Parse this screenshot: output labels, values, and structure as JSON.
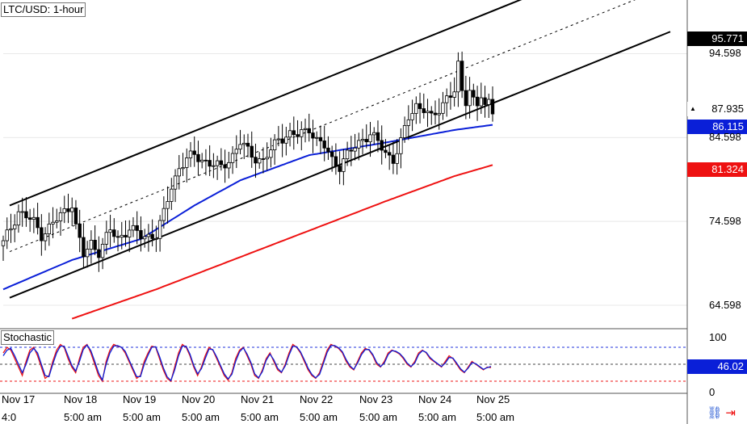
{
  "chart_data": [
    {
      "type": "candlestick",
      "title": "LTC/USD: 1-hour",
      "ylim": [
        62,
        101
      ],
      "y_ticks": [
        94.598,
        84.598,
        74.598,
        64.598
      ],
      "y_tick_labels": [
        "94.598",
        "84.598",
        "74.598",
        "64.598"
      ],
      "x_ticks_top": [
        "Nov 17",
        "Nov 18",
        "Nov 19",
        "Nov 20",
        "Nov 21",
        "Nov 22",
        "Nov 23",
        "Nov 24",
        "Nov 25"
      ],
      "x_ticks_bottom": [
        "4:0",
        "5:00 am",
        "5:00 am",
        "5:00 am",
        "5:00 am",
        "5:00 am",
        "5:00 am",
        "5:00 am",
        "5:00 am"
      ],
      "price_tags": [
        {
          "value": "95.771",
          "bg": "#000000",
          "fg": "#ffffff"
        },
        {
          "value": "87.935",
          "bg": "#ffffff",
          "fg": "#000000"
        },
        {
          "value": "86.115",
          "bg": "#0a1fd8",
          "fg": "#ffffff"
        },
        {
          "value": "81.324",
          "bg": "#ee1111",
          "fg": "#ffffff"
        }
      ],
      "close_path": [
        [
          0,
          72.0
        ],
        [
          4,
          75.8
        ],
        [
          8,
          74.5
        ],
        [
          10,
          73.0
        ],
        [
          14,
          74.8
        ],
        [
          18,
          76.8
        ],
        [
          19,
          74.0
        ],
        [
          21,
          70.5
        ],
        [
          23,
          72.0
        ],
        [
          25,
          71.0
        ],
        [
          28,
          73.5
        ],
        [
          30,
          72.5
        ],
        [
          33,
          73.8
        ],
        [
          36,
          72.8
        ],
        [
          40,
          73.0
        ],
        [
          42,
          75.5
        ],
        [
          44,
          78.8
        ],
        [
          46,
          81.0
        ],
        [
          48,
          82.0
        ],
        [
          50,
          82.5
        ],
        [
          54,
          81.5
        ],
        [
          57,
          81.0
        ],
        [
          60,
          82.5
        ],
        [
          62,
          84.0
        ],
        [
          64,
          83.0
        ],
        [
          66,
          82.2
        ],
        [
          68,
          81.8
        ],
        [
          70,
          83.0
        ],
        [
          72,
          84.5
        ],
        [
          75,
          85.0
        ],
        [
          77,
          84.8
        ],
        [
          80,
          85.8
        ],
        [
          82,
          84.2
        ],
        [
          84,
          83.5
        ],
        [
          86,
          82.0
        ],
        [
          88,
          81.2
        ],
        [
          90,
          82.5
        ],
        [
          92,
          83.5
        ],
        [
          94,
          84.5
        ],
        [
          96,
          85.0
        ],
        [
          98,
          84.0
        ],
        [
          100,
          82.8
        ],
        [
          102,
          82.0
        ],
        [
          104,
          84.0
        ],
        [
          106,
          87.0
        ],
        [
          108,
          88.5
        ],
        [
          110,
          88.0
        ],
        [
          112,
          86.8
        ],
        [
          114,
          88.0
        ],
        [
          116,
          89.5
        ],
        [
          118,
          90.0
        ],
        [
          119,
          93.0
        ],
        [
          120,
          90.0
        ],
        [
          121,
          89.0
        ],
        [
          122,
          90.5
        ],
        [
          123,
          89.2
        ],
        [
          124,
          88.5
        ],
        [
          125,
          89.5
        ],
        [
          126,
          88.0
        ],
        [
          127,
          88.7
        ],
        [
          128,
          87.9
        ]
      ],
      "series": [
        {
          "name": "",
          "color": "#0a1fd8",
          "points": [
            [
              0,
              66.5
            ],
            [
              18,
              70.0
            ],
            [
              36,
              72.5
            ],
            [
              50,
              76.5
            ],
            [
              62,
              79.5
            ],
            [
              80,
              82.5
            ],
            [
              100,
              84.0
            ],
            [
              118,
              85.5
            ],
            [
              128,
              86.115
            ]
          ]
        },
        {
          "name": "",
          "color": "#ee1111",
          "points": [
            [
              18,
              63.0
            ],
            [
              40,
              66.5
            ],
            [
              60,
              70.0
            ],
            [
              80,
              73.5
            ],
            [
              100,
              77.0
            ],
            [
              118,
              80.0
            ],
            [
              128,
              81.324
            ]
          ]
        }
      ],
      "channel": {
        "upper": [
          [
            0,
            76.5
          ],
          [
            128,
            100.0
          ]
        ],
        "lower": [
          [
            0,
            65.5
          ],
          [
            128,
            89.0
          ]
        ],
        "middle": [
          [
            0,
            71.0
          ],
          [
            128,
            94.5
          ]
        ],
        "line_color": "#000000"
      }
    },
    {
      "type": "line",
      "title": "Stochastic",
      "ylim": [
        0,
        100
      ],
      "y_tick_labels": [
        "100",
        "0"
      ],
      "current_value": "46.02",
      "overbought": 80,
      "oversold": 20,
      "series": [
        {
          "name": "",
          "color": "#ee1111",
          "values": [
            70,
            80,
            75,
            60,
            45,
            30,
            55,
            75,
            80,
            65,
            45,
            25,
            30,
            55,
            75,
            85,
            80,
            60,
            45,
            35,
            60,
            80,
            85,
            70,
            50,
            30,
            20,
            55,
            75,
            85,
            82,
            80,
            70,
            55,
            40,
            25,
            30,
            55,
            70,
            82,
            80,
            60,
            40,
            25,
            20,
            45,
            70,
            85,
            80,
            65,
            45,
            30,
            45,
            65,
            80,
            75,
            60,
            45,
            30,
            22,
            35,
            60,
            75,
            80,
            65,
            50,
            30,
            25,
            40,
            60,
            70,
            55,
            40,
            35,
            50,
            70,
            85,
            80,
            70,
            55,
            40,
            30,
            25,
            35,
            55,
            75,
            85,
            82,
            78,
            70,
            55,
            45,
            40,
            55,
            70,
            78,
            75,
            65,
            50,
            45,
            55,
            70,
            75,
            72,
            68,
            60,
            50,
            45,
            55,
            70,
            75,
            70,
            60,
            55,
            50,
            45,
            55,
            65,
            60,
            50,
            40,
            35,
            45,
            55,
            50,
            45,
            40,
            45,
            44
          ]
        },
        {
          "name": "",
          "color": "#0a1fd8",
          "values": [
            65,
            75,
            78,
            65,
            50,
            35,
            50,
            70,
            78,
            70,
            50,
            30,
            28,
            50,
            70,
            82,
            82,
            65,
            48,
            38,
            55,
            76,
            84,
            74,
            55,
            35,
            22,
            50,
            70,
            82,
            83,
            80,
            73,
            58,
            43,
            28,
            28,
            50,
            66,
            80,
            81,
            64,
            44,
            28,
            21,
            40,
            65,
            82,
            82,
            68,
            48,
            33,
            42,
            60,
            77,
            76,
            63,
            48,
            33,
            24,
            32,
            55,
            72,
            79,
            68,
            53,
            33,
            26,
            37,
            57,
            68,
            58,
            43,
            36,
            47,
            66,
            82,
            81,
            72,
            58,
            43,
            32,
            26,
            32,
            51,
            71,
            83,
            83,
            79,
            72,
            58,
            47,
            41,
            52,
            67,
            76,
            76,
            67,
            53,
            46,
            52,
            67,
            74,
            73,
            69,
            62,
            52,
            46,
            52,
            67,
            74,
            71,
            62,
            56,
            51,
            46,
            52,
            62,
            61,
            52,
            42,
            36,
            43,
            53,
            51,
            46,
            41,
            44,
            46.02
          ]
        }
      ]
    }
  ]
}
